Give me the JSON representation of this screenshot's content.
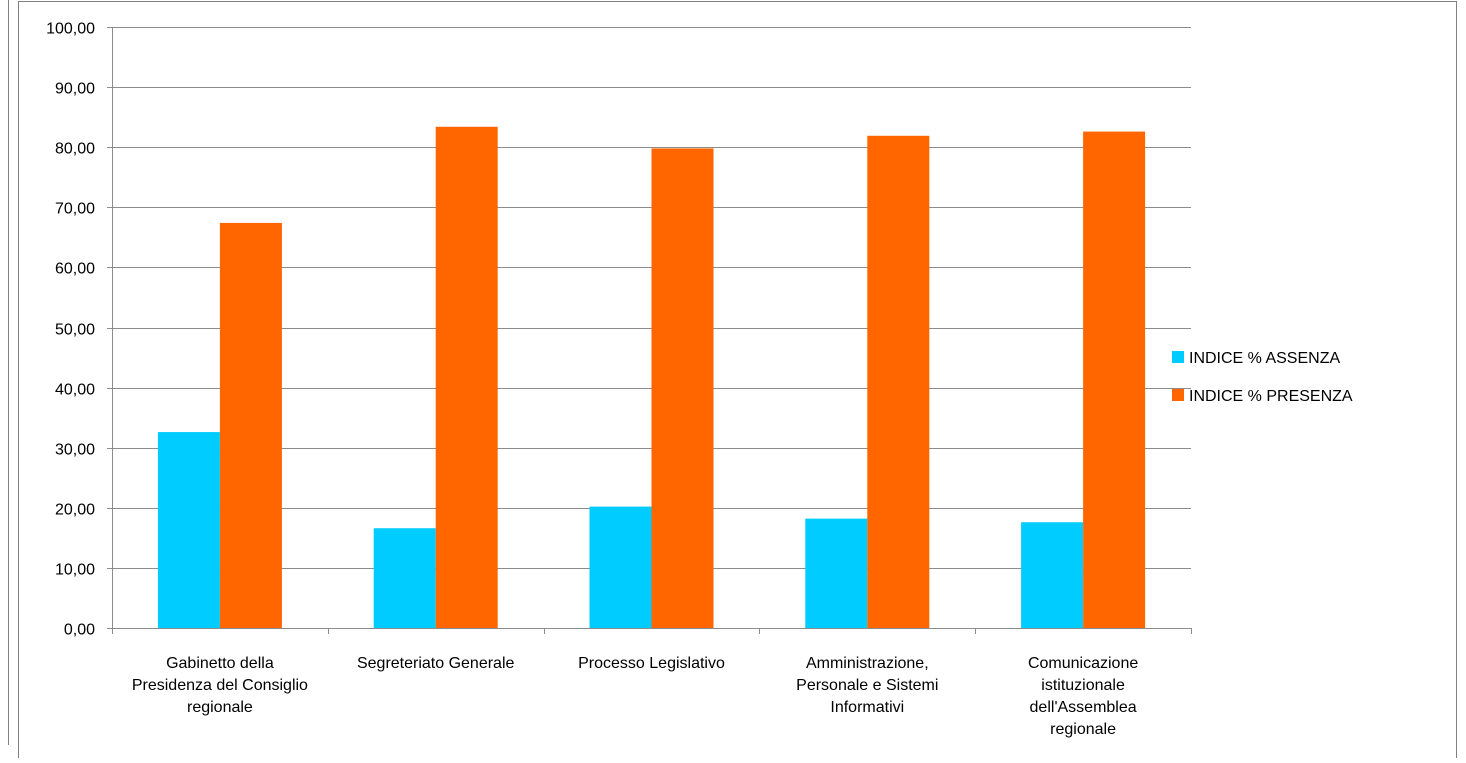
{
  "chart_data": {
    "type": "bar",
    "categories": [
      [
        "Gabinetto della",
        "Presidenza del Consiglio",
        "regionale"
      ],
      [
        "Segreteriato Generale"
      ],
      [
        "Processo Legislativo"
      ],
      [
        "Amministrazione,",
        "Personale e Sistemi",
        "Informativi"
      ],
      [
        "Comunicazione",
        "istituzionale",
        "dell'Assemblea",
        "regionale"
      ]
    ],
    "series": [
      {
        "name": "INDICE % ASSENZA",
        "color": "#00CCFF",
        "values": [
          32.6,
          16.6,
          20.2,
          18.2,
          17.6
        ]
      },
      {
        "name": "INDICE % PRESENZA",
        "color": "#FF6600",
        "values": [
          67.4,
          83.4,
          79.8,
          81.9,
          82.6
        ]
      }
    ],
    "yticks": [
      "0,00",
      "10,00",
      "20,00",
      "30,00",
      "40,00",
      "50,00",
      "60,00",
      "70,00",
      "80,00",
      "90,00",
      "100,00"
    ],
    "ylim": [
      0,
      100
    ],
    "grid": true,
    "legend_position": "right"
  }
}
